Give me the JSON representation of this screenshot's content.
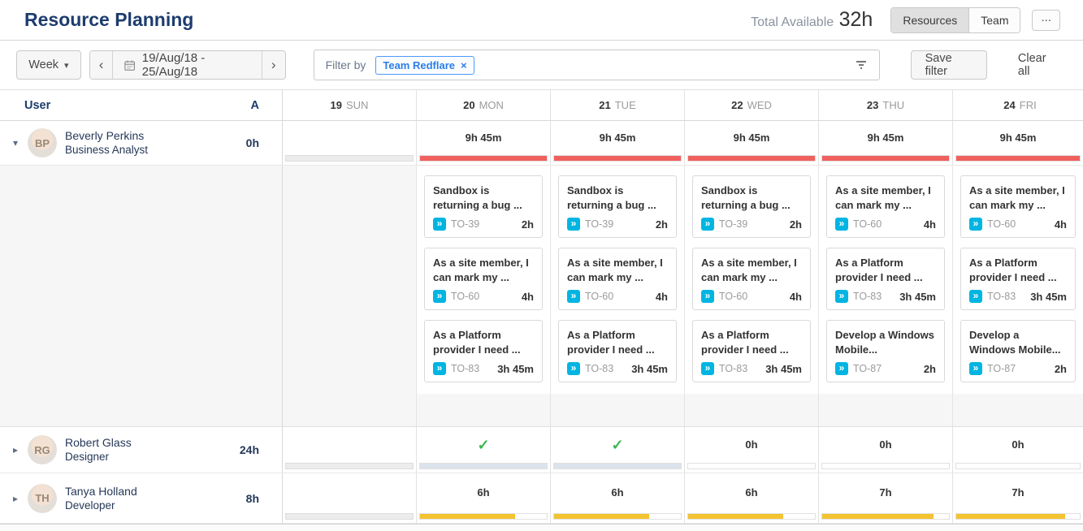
{
  "header": {
    "title": "Resource Planning",
    "total_available_label": "Total Available",
    "total_available_value": "32h",
    "view_buttons": [
      {
        "label": "Resources",
        "active": true
      },
      {
        "label": "Team",
        "active": false
      }
    ],
    "more_label": "..."
  },
  "toolbar": {
    "period_label": "Week",
    "date_range": "19/Aug/18 - 25/Aug/18",
    "prev_label": "‹",
    "next_label": "›",
    "filter_by_label": "Filter by",
    "filter_tag": "Team Redflare",
    "filter_tag_remove": "×",
    "save_filter_label": "Save filter",
    "clear_all_label": "Clear all"
  },
  "grid": {
    "user_col_header": "User",
    "availability_col_header": "A",
    "days": [
      {
        "num": "19",
        "name": "SUN"
      },
      {
        "num": "20",
        "name": "MON"
      },
      {
        "num": "21",
        "name": "TUE"
      },
      {
        "num": "22",
        "name": "WED"
      },
      {
        "num": "23",
        "name": "THU"
      },
      {
        "num": "24",
        "name": "FRI"
      }
    ],
    "users": [
      {
        "name": "Beverly Perkins",
        "role": "Business Analyst",
        "available": "0h",
        "expanded": true,
        "cells": [
          {
            "track": "gray"
          },
          {
            "label": "9h 45m",
            "track": "white",
            "fill_pct": 100,
            "fill_color": "red"
          },
          {
            "label": "9h 45m",
            "track": "white",
            "fill_pct": 100,
            "fill_color": "red"
          },
          {
            "label": "9h 45m",
            "track": "white",
            "fill_pct": 100,
            "fill_color": "red"
          },
          {
            "label": "9h 45m",
            "track": "white",
            "fill_pct": 100,
            "fill_color": "red"
          },
          {
            "label": "9h 45m",
            "track": "white",
            "fill_pct": 100,
            "fill_color": "red"
          }
        ],
        "tasks_by_day": [
          [],
          [
            {
              "title": "Sandbox is returning a bug ...",
              "key": "TO-39",
              "hours": "2h"
            },
            {
              "title": "As a site member, I can mark my ...",
              "key": "TO-60",
              "hours": "4h"
            },
            {
              "title": "As a Platform provider I need ...",
              "key": "TO-83",
              "hours": "3h 45m"
            }
          ],
          [
            {
              "title": "Sandbox is returning a bug ...",
              "key": "TO-39",
              "hours": "2h"
            },
            {
              "title": "As a site member, I can mark my ...",
              "key": "TO-60",
              "hours": "4h"
            },
            {
              "title": "As a Platform provider I need ...",
              "key": "TO-83",
              "hours": "3h 45m"
            }
          ],
          [
            {
              "title": "Sandbox is returning a bug ...",
              "key": "TO-39",
              "hours": "2h"
            },
            {
              "title": "As a site member, I can mark my ...",
              "key": "TO-60",
              "hours": "4h"
            },
            {
              "title": "As a Platform provider I need ...",
              "key": "TO-83",
              "hours": "3h 45m"
            }
          ],
          [
            {
              "title": "As a site member, I can mark my ...",
              "key": "TO-60",
              "hours": "4h"
            },
            {
              "title": "As a Platform provider I need ...",
              "key": "TO-83",
              "hours": "3h 45m"
            },
            {
              "title": "Develop a Windows Mobile...",
              "key": "TO-87",
              "hours": "2h"
            }
          ],
          [
            {
              "title": "As a site member, I can mark my ...",
              "key": "TO-60",
              "hours": "4h"
            },
            {
              "title": "As a Platform provider I need ...",
              "key": "TO-83",
              "hours": "3h 45m"
            },
            {
              "title": "Develop a Windows Mobile...",
              "key": "TO-87",
              "hours": "2h"
            }
          ]
        ]
      },
      {
        "name": "Robert Glass",
        "role": "Designer",
        "available": "24h",
        "expanded": false,
        "cells": [
          {
            "track": "gray"
          },
          {
            "check": true,
            "track": "white",
            "fill_pct": 100,
            "fill_color": "blue_gray"
          },
          {
            "check": true,
            "track": "white",
            "fill_pct": 100,
            "fill_color": "blue_gray"
          },
          {
            "label": "0h",
            "track": "white",
            "fill_pct": 0
          },
          {
            "label": "0h",
            "track": "white",
            "fill_pct": 0
          },
          {
            "label": "0h",
            "track": "white",
            "fill_pct": 0
          }
        ]
      },
      {
        "name": "Tanya Holland",
        "role": "Developer",
        "available": "8h",
        "expanded": false,
        "cells": [
          {
            "track": "gray"
          },
          {
            "label": "6h",
            "track": "white",
            "fill_pct": 75,
            "fill_color": "yellow"
          },
          {
            "label": "6h",
            "track": "white",
            "fill_pct": 75,
            "fill_color": "yellow"
          },
          {
            "label": "6h",
            "track": "white",
            "fill_pct": 75,
            "fill_color": "yellow"
          },
          {
            "label": "7h",
            "track": "white",
            "fill_pct": 88,
            "fill_color": "yellow"
          },
          {
            "label": "7h",
            "track": "white",
            "fill_pct": 88,
            "fill_color": "yellow"
          }
        ]
      }
    ]
  },
  "icons": {
    "calendar": "calendar-icon",
    "filter": "filter-funnel-icon",
    "issue_type": "story-double-chevron-icon",
    "check": "✓",
    "issue_type_glyph": "»"
  },
  "colors": {
    "red": "#f0605e",
    "yellow": "#f3c331",
    "blue_gray": "#dde3ec",
    "green": "#3eb44f",
    "cyan": "#00b5e2",
    "tag_blue": "#2b7de9",
    "navy": "#253858"
  }
}
